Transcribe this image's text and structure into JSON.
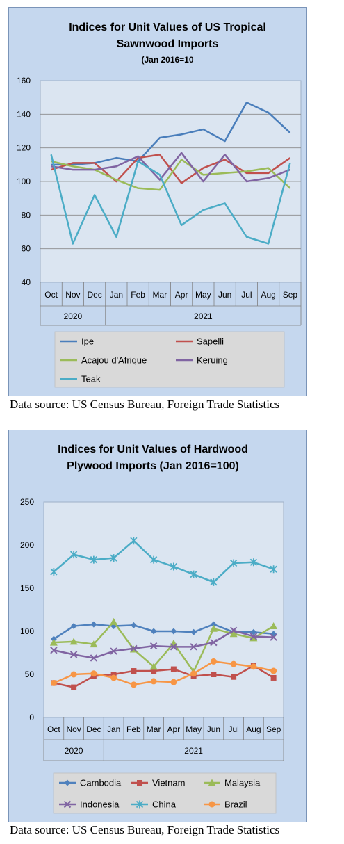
{
  "chart_data": [
    {
      "type": "line",
      "title_lines": [
        "Indices for Unit Values of US Tropical",
        "Sawnwood Imports"
      ],
      "subtitle": "(Jan 2016=10",
      "categories": [
        "Oct",
        "Nov",
        "Dec",
        "Jan",
        "Feb",
        "Mar",
        "Apr",
        "May",
        "Jun",
        "Jul",
        "Aug",
        "Sep"
      ],
      "year_groups": [
        {
          "label": "2020",
          "count": 3
        },
        {
          "label": "2021",
          "count": 9
        }
      ],
      "ylim": [
        40,
        160
      ],
      "yticks": [
        40,
        60,
        80,
        100,
        120,
        140,
        160
      ],
      "grid": true,
      "legend_position": "bottom",
      "series": [
        {
          "name": "Ipe",
          "color": "#4a7ebb",
          "marker": "none",
          "values": [
            110,
            110,
            111,
            114,
            112,
            126,
            128,
            131,
            124,
            147,
            141,
            129
          ]
        },
        {
          "name": "Sapelli",
          "color": "#c0504d",
          "marker": "none",
          "values": [
            107,
            111,
            111,
            100,
            114,
            116,
            99,
            108,
            113,
            105,
            105,
            114
          ]
        },
        {
          "name": "Acajou d'Afrique",
          "color": "#9bbb59",
          "marker": "none",
          "values": [
            112,
            109,
            107,
            101,
            96,
            95,
            113,
            104,
            105,
            106,
            108,
            96
          ]
        },
        {
          "name": "Keruing",
          "color": "#8064a2",
          "marker": "none",
          "values": [
            109,
            107,
            107,
            109,
            115,
            101,
            117,
            100,
            116,
            100,
            102,
            107
          ]
        },
        {
          "name": "Teak",
          "color": "#4bacc6",
          "marker": "none",
          "values": [
            116,
            63,
            92,
            67,
            112,
            104,
            74,
            83,
            87,
            67,
            63,
            111
          ]
        }
      ],
      "source": "Data source: US Census Bureau, Foreign Trade Statistics"
    },
    {
      "type": "line",
      "title_lines": [
        "Indices for Unit Values of Hardwood",
        "Plywood Imports (Jan 2016=100)"
      ],
      "categories": [
        "Oct",
        "Nov",
        "Dec",
        "Jan",
        "Feb",
        "Mar",
        "Apr",
        "May",
        "Jun",
        "Jul",
        "Aug",
        "Sep"
      ],
      "year_groups": [
        {
          "label": "2020",
          "count": 3
        },
        {
          "label": "2021",
          "count": 9
        }
      ],
      "ylim": [
        0,
        250
      ],
      "yticks": [
        0,
        50,
        100,
        150,
        200,
        250
      ],
      "grid": false,
      "legend_position": "bottom",
      "series": [
        {
          "name": "Cambodia",
          "color": "#4f81bd",
          "marker": "diamond",
          "values": [
            91,
            106,
            108,
            106,
            107,
            100,
            100,
            99,
            108,
            99,
            99,
            97
          ]
        },
        {
          "name": "Vietnam",
          "color": "#c0504d",
          "marker": "square",
          "values": [
            40,
            35,
            48,
            50,
            54,
            54,
            56,
            48,
            50,
            47,
            60,
            46
          ]
        },
        {
          "name": "Malaysia",
          "color": "#9bbb59",
          "marker": "triangle",
          "values": [
            87,
            88,
            85,
            111,
            79,
            59,
            86,
            53,
            103,
            97,
            92,
            106
          ]
        },
        {
          "name": "Indonesia",
          "color": "#8064a2",
          "marker": "x",
          "values": [
            78,
            73,
            69,
            77,
            80,
            83,
            82,
            82,
            87,
            101,
            94,
            93
          ]
        },
        {
          "name": "China",
          "color": "#4bacc6",
          "marker": "star",
          "values": [
            169,
            189,
            183,
            185,
            205,
            183,
            175,
            166,
            157,
            179,
            180,
            172
          ]
        },
        {
          "name": "Brazil",
          "color": "#f79646",
          "marker": "circle",
          "values": [
            40,
            50,
            51,
            46,
            38,
            42,
            41,
            51,
            65,
            62,
            59,
            54
          ]
        }
      ],
      "source": "Data source: US Census Bureau, Foreign Trade Statistics"
    }
  ]
}
